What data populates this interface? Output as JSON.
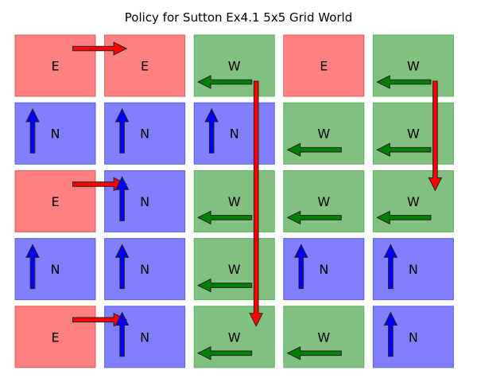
{
  "figure": {
    "title": "Policy for Sutton Ex4.1 5x5 Grid World"
  },
  "action_colors": {
    "E": "#ff8080",
    "W": "#80c080",
    "N": "#8080ff"
  },
  "arrow_colors": {
    "E": "#ff0000",
    "W": "#008000",
    "N": "#0000ff",
    "S": "#ff0000"
  },
  "grid": [
    [
      "E",
      "E",
      "W",
      "E",
      "W"
    ],
    [
      "N",
      "N",
      "N",
      "W",
      "W"
    ],
    [
      "E",
      "N",
      "W",
      "W",
      "W"
    ],
    [
      "N",
      "N",
      "W",
      "N",
      "N"
    ],
    [
      "E",
      "N",
      "W",
      "W",
      "N"
    ]
  ],
  "arrows": [
    {
      "dir": "E",
      "row": 0,
      "col": 0,
      "len": 1
    },
    {
      "dir": "N",
      "row": 1,
      "col": 0,
      "len": 1
    },
    {
      "dir": "N",
      "row": 1,
      "col": 1,
      "len": 1
    },
    {
      "dir": "W",
      "row": 0,
      "col": 2,
      "len": 1
    },
    {
      "dir": "N",
      "row": 1,
      "col": 2,
      "len": 1
    },
    {
      "dir": "S",
      "row": 0,
      "col": 2,
      "len": 4
    },
    {
      "dir": "W",
      "row": 0,
      "col": 4,
      "len": 1
    },
    {
      "dir": "S",
      "row": 0,
      "col": 4,
      "len": 2
    },
    {
      "dir": "W",
      "row": 1,
      "col": 3,
      "len": 1
    },
    {
      "dir": "W",
      "row": 1,
      "col": 4,
      "len": 1
    },
    {
      "dir": "E",
      "row": 2,
      "col": 0,
      "len": 1
    },
    {
      "dir": "N",
      "row": 2,
      "col": 1,
      "len": 1
    },
    {
      "dir": "W",
      "row": 2,
      "col": 2,
      "len": 1
    },
    {
      "dir": "W",
      "row": 2,
      "col": 3,
      "len": 1
    },
    {
      "dir": "W",
      "row": 2,
      "col": 4,
      "len": 1
    },
    {
      "dir": "N",
      "row": 3,
      "col": 0,
      "len": 1
    },
    {
      "dir": "N",
      "row": 3,
      "col": 1,
      "len": 1
    },
    {
      "dir": "W",
      "row": 3,
      "col": 2,
      "len": 1
    },
    {
      "dir": "N",
      "row": 3,
      "col": 3,
      "len": 1
    },
    {
      "dir": "N",
      "row": 3,
      "col": 4,
      "len": 1
    },
    {
      "dir": "E",
      "row": 4,
      "col": 0,
      "len": 1
    },
    {
      "dir": "N",
      "row": 4,
      "col": 1,
      "len": 1
    },
    {
      "dir": "W",
      "row": 4,
      "col": 2,
      "len": 1
    },
    {
      "dir": "W",
      "row": 4,
      "col": 3,
      "len": 1
    },
    {
      "dir": "N",
      "row": 4,
      "col": 4,
      "len": 1
    }
  ]
}
